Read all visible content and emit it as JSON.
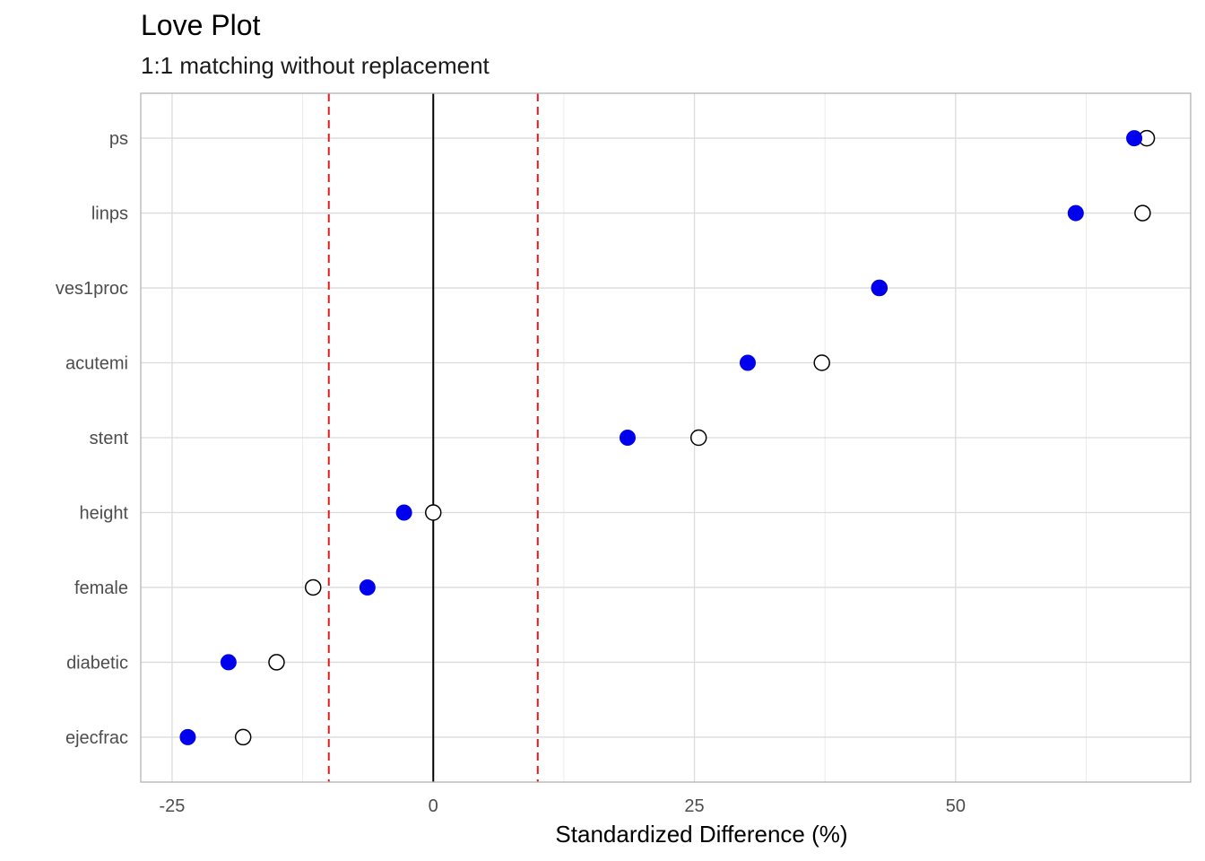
{
  "chart_data": {
    "type": "scatter",
    "title": "Love Plot",
    "subtitle": "1:1 matching without replacement",
    "xlabel": "Standardized Difference (%)",
    "ylabel": "",
    "xlim": [
      -28,
      72.5
    ],
    "xticks": [
      -25,
      0,
      25,
      50
    ],
    "xtick_labels": [
      "-25",
      "0",
      "25",
      "50"
    ],
    "categories": [
      "ps",
      "linps",
      "ves1proc",
      "acutemi",
      "stent",
      "height",
      "female",
      "diabetic",
      "ejecfrac"
    ],
    "series": [
      {
        "marker": "open-circle",
        "color": "#000000",
        "values": [
          68.3,
          67.9,
          42.7,
          37.2,
          25.4,
          0.0,
          -11.5,
          -15.0,
          -18.2
        ]
      },
      {
        "marker": "filled-circle",
        "color": "#0000ee",
        "values": [
          67.1,
          61.5,
          42.7,
          30.1,
          18.6,
          -2.8,
          -6.3,
          -19.6,
          -23.5
        ]
      }
    ],
    "reference_lines": [
      {
        "x": 0,
        "style": "solid",
        "color": "#000000"
      },
      {
        "x": -10,
        "style": "dashed",
        "color": "#e31a1c"
      },
      {
        "x": 10,
        "style": "dashed",
        "color": "#e31a1c"
      }
    ],
    "grid": true,
    "legend": "none"
  }
}
